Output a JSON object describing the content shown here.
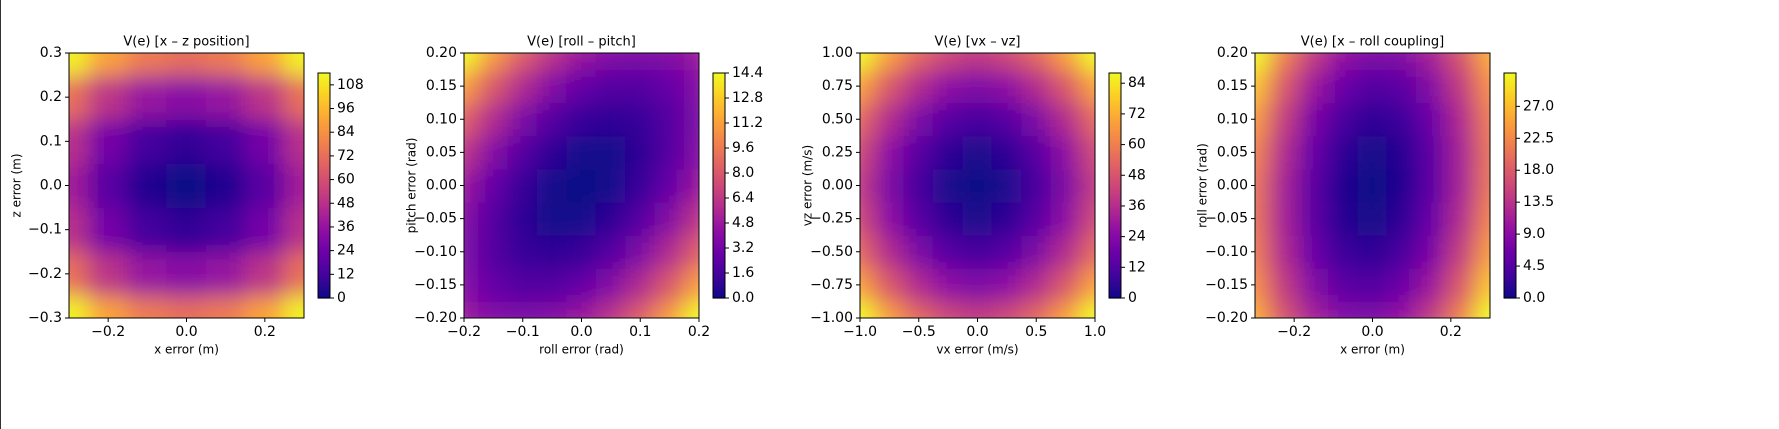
{
  "chart_data": [
    {
      "type": "contour",
      "title": "V(e)  [x – z position]",
      "x_label": "x error (m)",
      "y_label": "z error (m)",
      "colormap": "plasma",
      "contour_lines": true,
      "x": [
        -0.3,
        -0.2,
        -0.1,
        0,
        0.1,
        0.2,
        0.3
      ],
      "y": [
        -0.3,
        -0.2,
        -0.1,
        0,
        0.1,
        0.2,
        0.3
      ],
      "z": [
        [
          112.5,
          90,
          76.5,
          72,
          76.5,
          90,
          112.5
        ],
        [
          72.5,
          50,
          36.5,
          32,
          36.5,
          50,
          72.5
        ],
        [
          48.5,
          26,
          12.5,
          8,
          12.5,
          26,
          48.5
        ],
        [
          40.5,
          18,
          4.5,
          0,
          4.5,
          18,
          40.5
        ],
        [
          48.5,
          26,
          12.5,
          8,
          12.5,
          26,
          48.5
        ],
        [
          72.5,
          50,
          36.5,
          32,
          36.5,
          50,
          72.5
        ],
        [
          112.5,
          90,
          76.5,
          72,
          76.5,
          90,
          112.5
        ]
      ],
      "xlim": [
        -0.3,
        0.3
      ],
      "ylim": [
        -0.3,
        0.3
      ],
      "xticks": [
        {
          "value": -0.2,
          "label": "−0.2"
        },
        {
          "value": 0,
          "label": "0.0"
        },
        0.2
      ],
      "yticks": [
        {
          "value": -0.3,
          "label": "−0.3"
        },
        {
          "value": -0.2,
          "label": "−0.2"
        },
        {
          "value": -0.1,
          "label": "−0.1"
        },
        {
          "value": 0,
          "label": "0.0"
        },
        0.1,
        0.2,
        0.3
      ],
      "zlim": [
        0,
        114
      ],
      "zticks": [
        0,
        12,
        24,
        36,
        48,
        60,
        72,
        84,
        96,
        108
      ]
    },
    {
      "type": "contour",
      "title": "V(e)  [roll – pitch]",
      "x_label": "roll error (rad)",
      "y_label": "pitch error (rad)",
      "colormap": "plasma",
      "contour_lines": true,
      "x": [
        -0.2,
        -0.15,
        -0.1,
        -0.05,
        0,
        0.05,
        0.1,
        0.15,
        0.2
      ],
      "y": [
        -0.2,
        -0.15,
        -0.1,
        -0.05,
        0,
        0.05,
        0.1,
        0.15,
        0.2
      ],
      "z": [
        [
          4.8,
          3.9,
          3.6,
          3.9,
          4.8,
          6.3,
          8.4,
          11.1,
          14.4
        ],
        [
          3.9,
          2.7,
          2.1,
          2.1,
          2.7,
          3.9,
          5.7,
          8.1,
          11.1
        ],
        [
          3.6,
          2.1,
          1.2,
          0.9,
          1.2,
          2.1,
          3.6,
          5.7,
          8.4
        ],
        [
          3.9,
          2.1,
          0.9,
          0.3,
          0.3,
          0.9,
          2.1,
          3.9,
          6.3
        ],
        [
          4.8,
          2.7,
          1.2,
          0.3,
          0,
          0.3,
          1.2,
          2.7,
          4.8
        ],
        [
          6.3,
          3.9,
          2.1,
          0.9,
          0.3,
          0.3,
          0.9,
          2.1,
          3.9
        ],
        [
          8.4,
          5.7,
          3.6,
          2.1,
          1.2,
          0.9,
          1.2,
          2.1,
          3.6
        ],
        [
          11.1,
          8.1,
          5.7,
          3.9,
          2.7,
          2.1,
          2.1,
          2.7,
          3.9
        ],
        [
          14.4,
          11.1,
          8.4,
          6.3,
          4.8,
          3.9,
          3.6,
          3.9,
          4.8
        ]
      ],
      "xlim": [
        -0.2,
        0.2
      ],
      "ylim": [
        -0.2,
        0.2
      ],
      "xticks": [
        {
          "value": -0.2,
          "label": "−0.2"
        },
        {
          "value": -0.1,
          "label": "−0.1"
        },
        {
          "value": 0,
          "label": "0.0"
        },
        0.1,
        0.2
      ],
      "yticks": [
        {
          "value": -0.2,
          "label": "−0.20"
        },
        {
          "value": -0.15,
          "label": "−0.15"
        },
        {
          "value": -0.1,
          "label": "−0.10"
        },
        {
          "value": -0.05,
          "label": "−0.05"
        },
        {
          "value": 0,
          "label": "0.00"
        },
        0.05,
        {
          "value": 0.1,
          "label": "0.10"
        },
        0.15,
        {
          "value": 0.2,
          "label": "0.20"
        }
      ],
      "zlim": [
        0,
        14.4
      ],
      "zticks": [
        {
          "value": 0,
          "label": "0.0"
        },
        1.6,
        3.2,
        4.8,
        6.4,
        {
          "value": 8,
          "label": "8.0"
        },
        9.6,
        11.2,
        12.8,
        14.4
      ]
    },
    {
      "type": "contour",
      "title": "V(e)  [vx – vz]",
      "x_label": "vx error (m/s)",
      "y_label": "vz error (m/s)",
      "colormap": "plasma",
      "contour_lines": true,
      "x": [
        -1,
        -0.75,
        -0.5,
        -0.25,
        0,
        0.25,
        0.5,
        0.75,
        1
      ],
      "y": [
        -1,
        -0.75,
        -0.5,
        -0.25,
        0,
        0.25,
        0.5,
        0.75,
        1
      ],
      "z": [
        [
          88,
          68.5,
          54,
          44.5,
          40,
          44.5,
          54,
          68.5,
          88
        ],
        [
          68.5,
          49.5,
          35.5,
          26.5,
          22.5,
          26.5,
          35.5,
          49.5,
          68.5
        ],
        [
          54,
          35.5,
          22,
          13.5,
          10,
          13.5,
          22,
          35.5,
          54
        ],
        [
          44.5,
          26.5,
          13.5,
          5.5,
          2.5,
          5.5,
          13.5,
          26.5,
          44.5
        ],
        [
          40,
          22.5,
          10,
          2.5,
          0,
          2.5,
          10,
          22.5,
          40
        ],
        [
          44.5,
          26.5,
          13.5,
          5.5,
          2.5,
          5.5,
          13.5,
          26.5,
          44.5
        ],
        [
          54,
          35.5,
          22,
          13.5,
          10,
          13.5,
          22,
          35.5,
          54
        ],
        [
          68.5,
          49.5,
          35.5,
          26.5,
          22.5,
          26.5,
          35.5,
          49.5,
          68.5
        ],
        [
          88,
          68.5,
          54,
          44.5,
          40,
          44.5,
          54,
          68.5,
          88
        ]
      ],
      "xlim": [
        -1,
        1
      ],
      "ylim": [
        -1,
        1
      ],
      "xticks": [
        {
          "value": -1,
          "label": "−1.0"
        },
        {
          "value": -0.5,
          "label": "−0.5"
        },
        {
          "value": 0,
          "label": "0.0"
        },
        0.5,
        {
          "value": 1,
          "label": "1.0"
        }
      ],
      "yticks": [
        {
          "value": -1,
          "label": "−1.00"
        },
        {
          "value": -0.75,
          "label": "−0.75"
        },
        {
          "value": -0.5,
          "label": "−0.50"
        },
        {
          "value": -0.25,
          "label": "−0.25"
        },
        {
          "value": 0,
          "label": "0.00"
        },
        0.25,
        {
          "value": 0.5,
          "label": "0.50"
        },
        0.75,
        {
          "value": 1,
          "label": "1.00"
        }
      ],
      "zlim": [
        0,
        88
      ],
      "zticks": [
        0,
        12,
        24,
        36,
        48,
        60,
        72,
        84
      ]
    },
    {
      "type": "contour",
      "title": "V(e)  [x – roll coupling]",
      "x_label": "x error (m)",
      "y_label": "roll error (rad)",
      "colormap": "plasma",
      "contour_lines": true,
      "x": [
        -0.3,
        -0.225,
        -0.15,
        -0.075,
        0,
        0.075,
        0.15,
        0.225,
        0.3
      ],
      "y": [
        -0.2,
        -0.15,
        -0.1,
        -0.05,
        0,
        0.05,
        0.1,
        0.15,
        0.2
      ],
      "z": [
        [
          25.7,
          17.4,
          11.7,
          8.5,
          8,
          10,
          14.7,
          21.9,
          31.7
        ],
        [
          23,
          14.5,
          8.6,
          5.2,
          4.5,
          6.4,
          10.8,
          17.8,
          27.5
        ],
        [
          21.2,
          12.5,
          6.4,
          2.9,
          2,
          3.7,
          7.9,
          14.8,
          24.2
        ],
        [
          20.5,
          11.6,
          5.3,
          1.6,
          0.5,
          2,
          6.1,
          12.7,
          22
        ],
        [
          20.7,
          11.6,
          5.2,
          1.3,
          0,
          1.3,
          5.2,
          11.6,
          20.7
        ],
        [
          22,
          12.7,
          6.1,
          2,
          0.5,
          1.6,
          5.3,
          11.6,
          20.5
        ],
        [
          24.2,
          14.8,
          7.9,
          3.7,
          2,
          2.9,
          6.4,
          12.5,
          21.2
        ],
        [
          27.5,
          17.8,
          10.8,
          6.4,
          4.5,
          5.2,
          8.6,
          14.5,
          23
        ],
        [
          31.7,
          21.9,
          14.7,
          10,
          8,
          8.5,
          11.7,
          17.4,
          25.7
        ]
      ],
      "xlim": [
        -0.3,
        0.3
      ],
      "ylim": [
        -0.2,
        0.2
      ],
      "xticks": [
        {
          "value": -0.2,
          "label": "−0.2"
        },
        {
          "value": 0,
          "label": "0.0"
        },
        0.2
      ],
      "yticks": [
        {
          "value": -0.2,
          "label": "−0.20"
        },
        {
          "value": -0.15,
          "label": "−0.15"
        },
        {
          "value": -0.1,
          "label": "−0.10"
        },
        {
          "value": -0.05,
          "label": "−0.05"
        },
        {
          "value": 0,
          "label": "0.00"
        },
        0.05,
        {
          "value": 0.1,
          "label": "0.10"
        },
        0.15,
        {
          "value": 0.2,
          "label": "0.20"
        }
      ],
      "zlim": [
        0,
        31.7
      ],
      "zticks": [
        {
          "value": 0,
          "label": "0.0"
        },
        4.5,
        {
          "value": 9,
          "label": "9.0"
        },
        13.5,
        {
          "value": 18,
          "label": "18.0"
        },
        22.5,
        {
          "value": 27,
          "label": "27.0"
        }
      ]
    }
  ]
}
